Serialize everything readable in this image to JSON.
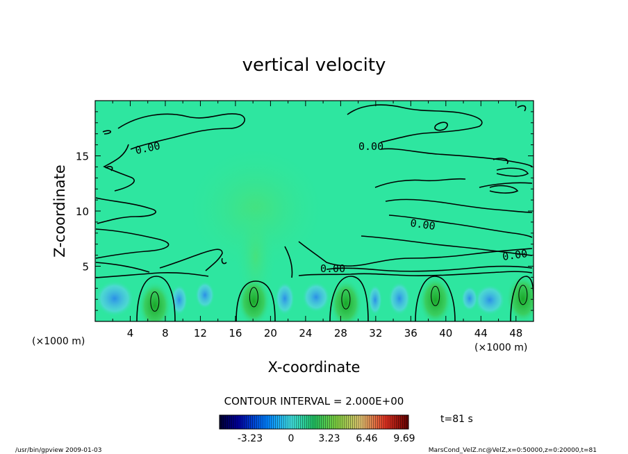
{
  "chart_data": {
    "type": "heatmap",
    "title": "vertical velocity",
    "xlabel": "X-coordinate",
    "ylabel": "Z-coordinate",
    "x_unit_left": "(×1000 m)",
    "x_unit_right": "(×1000 m)",
    "xlim": [
      0,
      50
    ],
    "ylim": [
      0,
      20
    ],
    "x_ticks": [
      "4",
      "8",
      "12",
      "16",
      "20",
      "24",
      "28",
      "32",
      "36",
      "40",
      "44",
      "48"
    ],
    "y_ticks": [
      "5",
      "10",
      "15"
    ],
    "contour_interval_text": "CONTOUR INTERVAL = 2.000E+00",
    "contour_labels": [
      "0.00",
      "0.00",
      "0.00",
      "0.00",
      "0.00"
    ],
    "time_label": "t=81 s",
    "colorbar": {
      "range": [
        -9.69,
        9.69
      ],
      "tick_labels": [
        "-3.23",
        "0",
        "3.23",
        "6.46",
        "9.69"
      ]
    },
    "updrafts": [
      {
        "x": 6.8,
        "z": 1.8
      },
      {
        "x": 18.1,
        "z": 2.2
      },
      {
        "x": 28.6,
        "z": 2.0
      },
      {
        "x": 38.8,
        "z": 2.3
      },
      {
        "x": 48.8,
        "z": 2.4
      }
    ],
    "footer_left": "/usr/bin/gpview   2009-01-03",
    "footer_right": "MarsCond_VelZ.nc@VelZ,x=0:50000,z=0:20000,t=81",
    "colors": {
      "background_field": "#2ee6a0",
      "upward": "#1fb030",
      "downward": "#2a8fe6"
    }
  }
}
